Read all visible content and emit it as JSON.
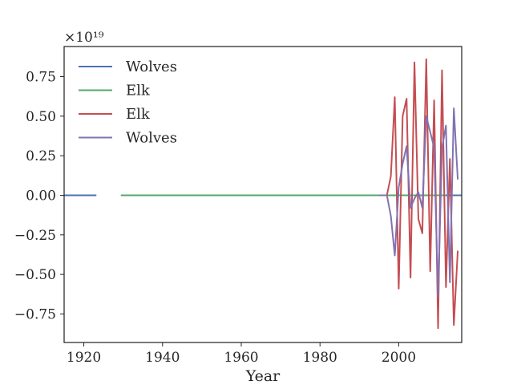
{
  "chart_data": {
    "type": "line",
    "title": "",
    "xlabel": "Year",
    "ylabel": "",
    "xlim": [
      1915,
      2016
    ],
    "ylim": [
      -0.93,
      0.94
    ],
    "y_scale_multiplier": "×10¹⁹",
    "grid": false,
    "legend_placement": "top-left",
    "x_ticks": [
      1920,
      1940,
      1960,
      1980,
      2000
    ],
    "x_tick_labels": [
      "1920",
      "1940",
      "1960",
      "1980",
      "2000"
    ],
    "y_ticks": [
      -0.75,
      -0.5,
      -0.25,
      0.0,
      0.25,
      0.5,
      0.75
    ],
    "y_tick_labels": [
      "−0.75",
      "−0.50",
      "−0.25",
      "0.00",
      "0.25",
      "0.50",
      "0.75"
    ],
    "series": [
      {
        "name": "Wolves",
        "color": "#4c72b0",
        "x": [
          1915,
          1923.2,
          null,
          2011.5,
          2016
        ],
        "y": [
          0,
          0,
          null,
          0,
          0
        ]
      },
      {
        "name": "Elk",
        "color": "#55a868",
        "x": [
          1929.4,
          2012
        ],
        "y": [
          0,
          0
        ]
      },
      {
        "name": "Elk",
        "color": "#c44e52",
        "x": [
          1995,
          1996,
          1997,
          1998,
          1999,
          2000,
          2001,
          2002,
          2003,
          2004,
          2005,
          2006,
          2007,
          2008,
          2009,
          2010,
          2011,
          2012,
          2013,
          2014,
          2015
        ],
        "y": [
          0,
          0,
          0,
          0.12,
          0.62,
          -0.59,
          0.5,
          0.61,
          -0.52,
          0.84,
          -0.15,
          -0.24,
          0.86,
          -0.48,
          0.6,
          -0.84,
          0.79,
          -0.58,
          0.23,
          -0.82,
          -0.35
        ]
      },
      {
        "name": "Wolves",
        "color": "#8172b2",
        "x": [
          1995,
          1996,
          1997,
          1998,
          1999,
          2000,
          2001,
          2002,
          2003,
          2004,
          2005,
          2006,
          2007,
          2008,
          2009,
          2010,
          2011,
          2012,
          2013,
          2014,
          2015
        ],
        "y": [
          0,
          0,
          0,
          -0.13,
          -0.38,
          0.05,
          0.2,
          0.31,
          -0.08,
          -0.02,
          0.02,
          -0.08,
          0.5,
          0.4,
          0.3,
          -0.64,
          0.3,
          0.44,
          -0.55,
          0.55,
          0.1
        ]
      }
    ]
  }
}
